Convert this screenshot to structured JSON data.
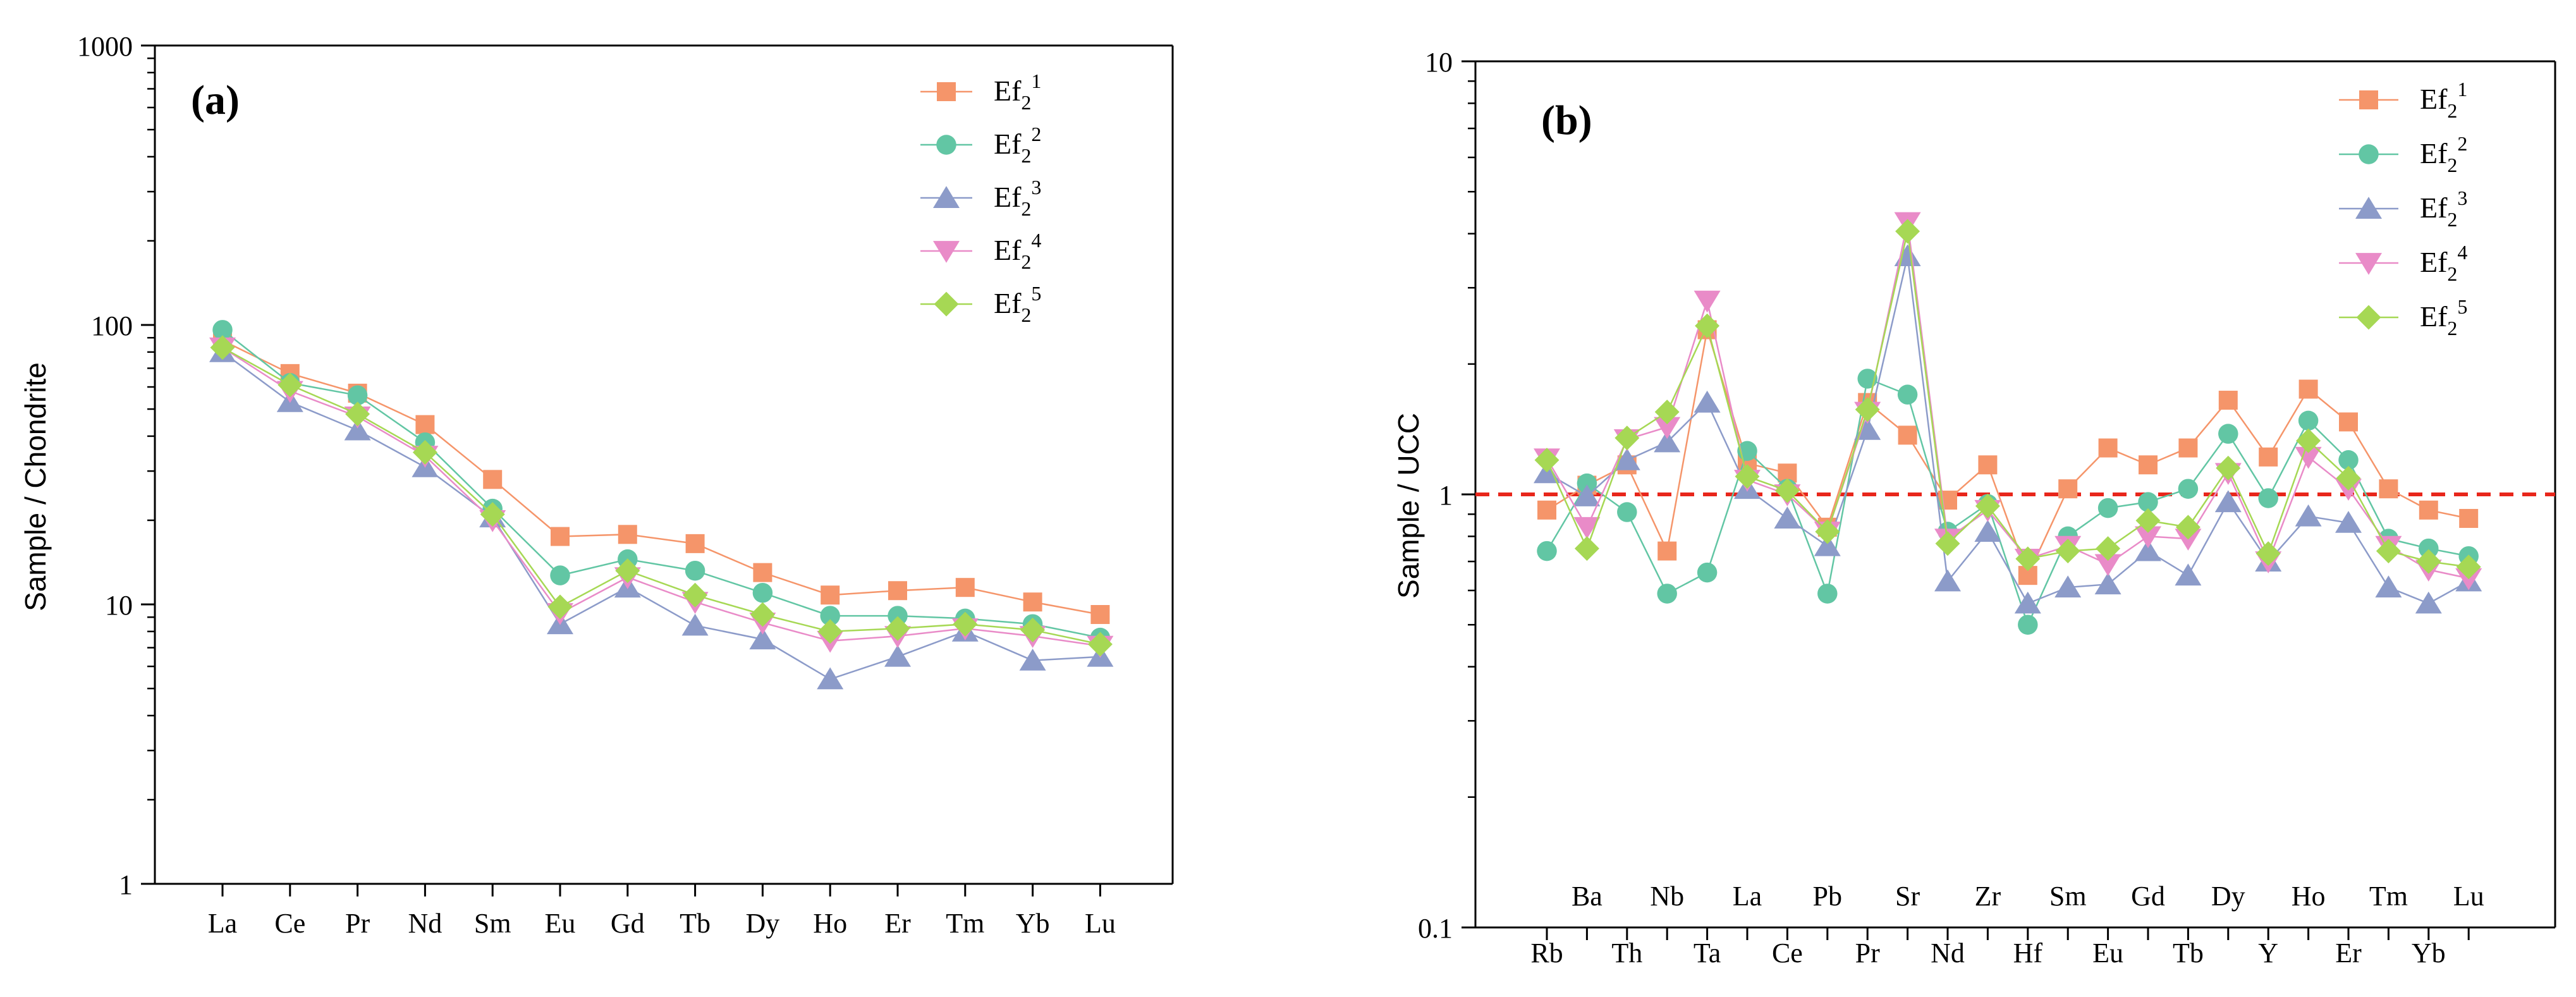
{
  "chart_data": [
    {
      "type": "line",
      "panel_label": "(a)",
      "ylabel": "Sample / Chondrite",
      "xlabel": "",
      "yscale": "log",
      "ylim": [
        1,
        1000
      ],
      "yticks": [
        "1",
        "10",
        "100",
        "1000"
      ],
      "categories": [
        "La",
        "Ce",
        "Pr",
        "Nd",
        "Sm",
        "Eu",
        "Gd",
        "Tb",
        "Dy",
        "Ho",
        "Er",
        "Tm",
        "Yb",
        "Lu"
      ],
      "legend_position": "top-right",
      "series": [
        {
          "name": "Ef2^1",
          "name_base": "Ef",
          "name_sub": "2",
          "name_sup": "1",
          "marker": "square",
          "color": "#f5956a",
          "values": [
            88,
            67,
            57,
            44,
            28,
            17.5,
            17.8,
            16.5,
            13,
            10.8,
            11.2,
            11.5,
            10.2,
            9.2
          ]
        },
        {
          "name": "Ef2^2",
          "name_base": "Ef",
          "name_sub": "2",
          "name_sup": "2",
          "marker": "circle",
          "color": "#62c6a4",
          "values": [
            96,
            62,
            56,
            38,
            22,
            12.7,
            14.5,
            13.2,
            11,
            9.1,
            9.1,
            8.9,
            8.5,
            7.6
          ]
        },
        {
          "name": "Ef2^3",
          "name_base": "Ef",
          "name_sub": "2",
          "name_sup": "3",
          "marker": "triangle-up",
          "color": "#8c9bc9",
          "values": [
            80,
            53,
            42,
            31,
            20.5,
            8.5,
            11.5,
            8.4,
            7.5,
            5.4,
            6.5,
            8.0,
            6.3,
            6.5
          ]
        },
        {
          "name": "Ef2^4",
          "name_base": "Ef",
          "name_sub": "2",
          "name_sup": "4",
          "marker": "triangle-down",
          "color": "#e98bc8",
          "values": [
            83,
            58,
            47,
            34,
            20,
            9.3,
            12.5,
            10.2,
            8.6,
            7.4,
            7.7,
            8.2,
            7.7,
            7.1
          ]
        },
        {
          "name": "Ef2^5",
          "name_base": "Ef",
          "name_sub": "2",
          "name_sup": "5",
          "marker": "diamond",
          "color": "#a6d854",
          "values": [
            83,
            61,
            48,
            35,
            21,
            9.8,
            13.2,
            10.8,
            9.2,
            8.0,
            8.2,
            8.5,
            8.1,
            7.2
          ]
        }
      ]
    },
    {
      "type": "line",
      "panel_label": "(b)",
      "ylabel": "Sample / UCC",
      "xlabel": "",
      "yscale": "log",
      "ylim": [
        0.1,
        10
      ],
      "yticks": [
        "0.1",
        "1",
        "10"
      ],
      "categories": [
        "Rb",
        "Ba",
        "Th",
        "Nb",
        "Ta",
        "La",
        "Ce",
        "Pb",
        "Pr",
        "Sr",
        "Nd",
        "Zr",
        "Hf",
        "Sm",
        "Eu",
        "Gd",
        "Tb",
        "Dy",
        "Y",
        "Ho",
        "Er",
        "Tm",
        "Yb",
        "Lu"
      ],
      "reference_line": {
        "value": 1,
        "color": "#e8261b",
        "style": "dashed"
      },
      "legend_position": "top-right",
      "series": [
        {
          "name": "Ef2^1",
          "name_base": "Ef",
          "name_sub": "2",
          "name_sup": "1",
          "marker": "square",
          "color": "#f5956a",
          "values": [
            0.92,
            1.05,
            1.17,
            0.74,
            2.4,
            1.18,
            1.12,
            0.84,
            1.63,
            1.37,
            0.97,
            1.17,
            0.65,
            1.03,
            1.28,
            1.17,
            1.28,
            1.65,
            1.22,
            1.75,
            1.47,
            1.03,
            0.92,
            0.88
          ]
        },
        {
          "name": "Ef2^2",
          "name_base": "Ef",
          "name_sub": "2",
          "name_sup": "2",
          "marker": "circle",
          "color": "#62c6a4",
          "values": [
            0.74,
            1.06,
            0.91,
            0.59,
            0.66,
            1.26,
            1.03,
            0.59,
            1.85,
            1.7,
            0.82,
            0.95,
            0.5,
            0.8,
            0.93,
            0.96,
            1.03,
            1.38,
            0.98,
            1.48,
            1.2,
            0.79,
            0.75,
            0.72
          ]
        },
        {
          "name": "Ef2^3",
          "name_base": "Ef",
          "name_sub": "2",
          "name_sup": "3",
          "marker": "triangle-up",
          "color": "#8c9bc9",
          "values": [
            1.12,
            0.99,
            1.2,
            1.32,
            1.63,
            1.03,
            0.88,
            0.76,
            1.41,
            3.55,
            0.63,
            0.82,
            0.56,
            0.61,
            0.62,
            0.74,
            0.65,
            0.96,
            0.7,
            0.89,
            0.86,
            0.61,
            0.56,
            0.63
          ]
        },
        {
          "name": "Ef2^4",
          "name_base": "Ef",
          "name_sub": "2",
          "name_sup": "4",
          "marker": "triangle-down",
          "color": "#e98bc8",
          "values": [
            1.21,
            0.84,
            1.34,
            1.43,
            2.8,
            1.08,
            1.0,
            0.82,
            1.55,
            4.25,
            0.79,
            0.92,
            0.71,
            0.76,
            0.69,
            0.8,
            0.79,
            1.12,
            0.7,
            1.22,
            1.03,
            0.76,
            0.67,
            0.64
          ]
        },
        {
          "name": "Ef2^5",
          "name_base": "Ef",
          "name_sub": "2",
          "name_sup": "5",
          "marker": "diamond",
          "color": "#a6d854",
          "values": [
            1.2,
            0.75,
            1.35,
            1.55,
            2.45,
            1.1,
            1.02,
            0.82,
            1.57,
            4.05,
            0.77,
            0.94,
            0.71,
            0.74,
            0.75,
            0.87,
            0.84,
            1.15,
            0.73,
            1.33,
            1.09,
            0.74,
            0.7,
            0.68
          ]
        }
      ]
    }
  ]
}
